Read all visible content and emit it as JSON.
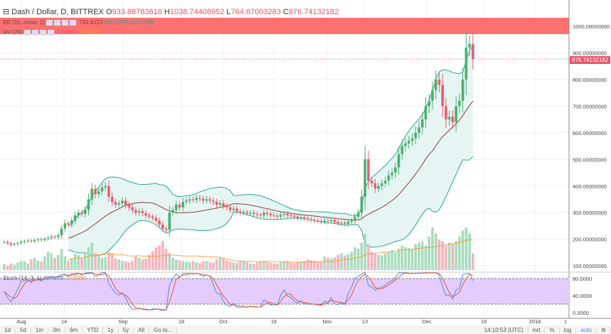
{
  "header": {
    "symbol": "Dash / Dollar, D, BITTREX",
    "open_label": "O",
    "open": "933.88783616",
    "high_label": "H",
    "high": "1038.74408952",
    "low_label": "L",
    "low": "764.67003283",
    "close_label": "C",
    "close": "876.74132182"
  },
  "bb": {
    "label": "BB (20, close, 2)",
    "basis": "741.6113",
    "upper": "936.1939",
    "lower": "547.0288"
  },
  "vol": {
    "label": "Vol (20)",
    "value": "54.996K",
    "ma": "99.592K"
  },
  "stoch": {
    "label": "Stoch (14, 3, 1)",
    "k": "69.8205",
    "d": "77.5980"
  },
  "last_price": "876.74132182",
  "colors": {
    "up": "#4caf72",
    "down": "#ef5b6e",
    "bb_fill": "#e6f5f3",
    "bb_band": "#26a69a",
    "bb_basis": "#8b3a3a",
    "zone": "#ff7070",
    "stoch_bg": "#e4ccff",
    "k": "#4a90e2",
    "d": "#f2552c"
  },
  "toolbar": {
    "ranges": [
      "1d",
      "5d",
      "1m",
      "3m",
      "6m",
      "YTD",
      "1y",
      "5y",
      "All",
      "Go to..."
    ],
    "time": "14:10:53 (UTC)",
    "options": [
      "ext",
      "%",
      "log",
      "auto"
    ],
    "settings_icon": "gear-icon"
  },
  "chart_data": {
    "type": "candlestick",
    "start_date": "2017-07-28",
    "price_axis": {
      "ticks": [
        "1000.00000000",
        "900.00000000",
        "800.00000000",
        "700.00000000",
        "600.00000000",
        "500.00000000",
        "400.00000000",
        "300.00000000",
        "200.00000000",
        "100.00000000"
      ],
      "ylim": [
        80,
        1040
      ]
    },
    "stoch_axis": {
      "ticks": [
        "80.0000",
        "40.0000",
        "0.0000"
      ]
    },
    "date_ticks": [
      "Aug",
      "14",
      "Sep",
      "18",
      "Oct",
      "16",
      "Nov",
      "13",
      "Dec",
      "18",
      "2018",
      "1"
    ],
    "closes": [
      190,
      185,
      180,
      183,
      186,
      190,
      192,
      195,
      193,
      197,
      200,
      198,
      202,
      205,
      210,
      208,
      215,
      240,
      260,
      255,
      270,
      290,
      300,
      295,
      310,
      350,
      390,
      370,
      380,
      395,
      400,
      360,
      340,
      330,
      335,
      345,
      330,
      320,
      310,
      300,
      305,
      298,
      290,
      285,
      280,
      270,
      255,
      240,
      235,
      300,
      310,
      330,
      320,
      340,
      345,
      350,
      348,
      355,
      352,
      345,
      350,
      345,
      340,
      330,
      335,
      325,
      320,
      310,
      315,
      305,
      300,
      302,
      298,
      300,
      295,
      292,
      290,
      300,
      295,
      290,
      288,
      285,
      292,
      295,
      290,
      288,
      285,
      280,
      282,
      278,
      275,
      272,
      270,
      268,
      265,
      270,
      268,
      272,
      265,
      260,
      262,
      258,
      266,
      270,
      285,
      300,
      360,
      500,
      420,
      410,
      390,
      400,
      410,
      420,
      440,
      450,
      470,
      520,
      550,
      560,
      570,
      580,
      600,
      620,
      650,
      700,
      720,
      760,
      800,
      780,
      700,
      650,
      660,
      640,
      700,
      720,
      800,
      920,
      934,
      877
    ],
    "volumes_k": [
      20,
      15,
      22,
      18,
      25,
      30,
      28,
      22,
      35,
      40,
      30,
      28,
      45,
      60,
      55,
      40,
      50,
      70,
      45,
      30,
      38,
      52,
      48,
      40,
      60,
      75,
      90,
      55,
      48,
      40,
      42,
      60,
      55,
      38,
      35,
      30,
      28,
      25,
      30,
      45,
      40,
      35,
      38,
      50,
      62,
      75,
      80,
      95,
      70,
      55,
      40,
      35,
      32,
      30,
      28,
      26,
      30,
      25,
      22,
      28,
      30,
      26,
      24,
      35,
      40,
      38,
      32,
      28,
      25,
      24,
      30,
      28,
      26,
      22,
      20,
      25,
      28,
      30,
      26,
      24,
      22,
      20,
      25,
      28,
      30,
      24,
      22,
      26,
      28,
      30,
      35,
      32,
      30,
      28,
      26,
      45,
      40,
      38,
      42,
      50,
      55,
      48,
      52,
      60,
      75,
      70,
      90,
      120,
      85,
      60,
      55,
      50,
      48,
      55,
      60,
      65,
      58,
      70,
      80,
      75,
      72,
      68,
      85,
      90,
      95,
      80,
      110,
      140,
      120,
      100,
      95,
      80,
      90,
      85,
      95,
      110,
      130,
      140,
      120,
      55
    ]
  }
}
